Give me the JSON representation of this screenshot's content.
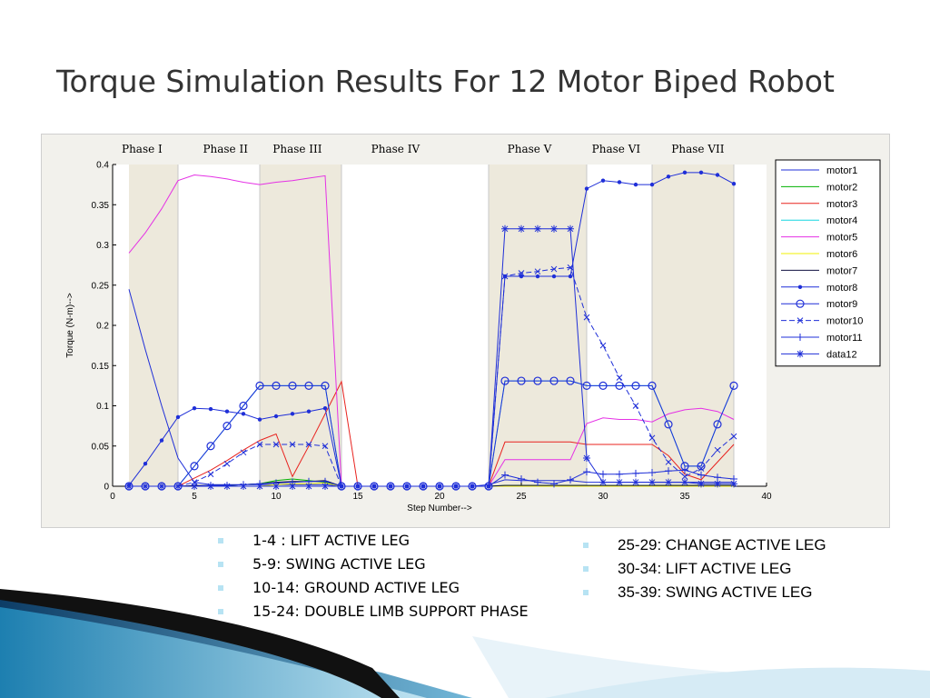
{
  "slide": {
    "title": "Torque Simulation Results For 12 Motor Biped Robot"
  },
  "bullets_left": [
    "1-4 : LIFT ACTIVE LEG",
    "5-9: SWING ACTIVE LEG",
    "10-14: GROUND ACTIVE LEG",
    "15-24: DOUBLE LIMB SUPPORT PHASE"
  ],
  "bullets_right": [
    "25-29: CHANGE ACTIVE LEG",
    "30-34: LIFT ACTIVE LEG",
    "35-39: SWING ACTIVE LEG"
  ],
  "chart_data": {
    "type": "line",
    "title": "",
    "xlabel": "Step Number-->",
    "ylabel": "Torque (N-m)-->",
    "xlim": [
      0,
      40
    ],
    "ylim": [
      0,
      0.4
    ],
    "xticks": [
      0,
      5,
      10,
      15,
      20,
      25,
      30,
      35,
      40
    ],
    "yticks": [
      0,
      0.05,
      0.1,
      0.15,
      0.2,
      0.25,
      0.3,
      0.35,
      0.4
    ],
    "legend_position": "top-right",
    "phase_labels": [
      "Phase I",
      "Phase II",
      "Phase III",
      "Phase IV",
      "Phase V",
      "Phase VI",
      "Phase VII"
    ],
    "phase_boundaries": [
      4,
      9,
      14,
      23,
      29,
      33,
      38
    ],
    "phase_shaded": [
      [
        1,
        4
      ],
      [
        9,
        14
      ],
      [
        23,
        29
      ],
      [
        33,
        38
      ]
    ],
    "colors": {
      "motor1": "#1f2fd8",
      "motor2": "#00b000",
      "motor3": "#e8231f",
      "motor4": "#15d6e0",
      "motor5": "#e531e5",
      "motor6": "#f0f000",
      "motor7": "#101040",
      "motor8": "#1f2fd8",
      "motor9": "#1f2fd8",
      "motor10": "#1f2fd8",
      "motor11": "#1f2fd8",
      "data12": "#1f2fd8"
    },
    "x": [
      1,
      2,
      3,
      4,
      5,
      6,
      7,
      8,
      9,
      10,
      11,
      12,
      13,
      14,
      15,
      16,
      17,
      18,
      19,
      20,
      21,
      22,
      23,
      24,
      25,
      26,
      27,
      28,
      29,
      30,
      31,
      32,
      33,
      34,
      35,
      36,
      37,
      38
    ],
    "series": [
      {
        "name": "motor1",
        "marker": "none",
        "values": [
          0.245,
          0.17,
          0.1,
          0.035,
          0.005,
          0.002,
          0.002,
          0.002,
          0.002,
          0.002,
          0.002,
          0.002,
          0.002,
          0,
          0,
          0,
          0,
          0,
          0,
          0,
          0,
          0,
          0.002,
          0.008,
          0.007,
          0.007,
          0.007,
          0.007,
          0.005,
          0.005,
          0.005,
          0.005,
          0.005,
          0.005,
          0.005,
          0.005,
          0.005,
          0.005
        ]
      },
      {
        "name": "motor2",
        "marker": "none",
        "values": [
          0,
          0,
          0,
          0,
          0,
          0.001,
          0.001,
          0.002,
          0.003,
          0.007,
          0.009,
          0.007,
          0.005,
          0,
          0,
          0,
          0,
          0,
          0,
          0,
          0,
          0,
          0,
          0.001,
          0.001,
          0.001,
          0.001,
          0.001,
          0.001,
          0.001,
          0.001,
          0.001,
          0.001,
          0.001,
          0.001,
          0.001,
          0.001,
          0.001
        ]
      },
      {
        "name": "motor3",
        "marker": "none",
        "values": [
          0,
          0,
          0,
          0,
          0.01,
          0.02,
          0.032,
          0.045,
          0.057,
          0.065,
          0.012,
          0.05,
          0.09,
          0.13,
          0,
          0,
          0,
          0,
          0,
          0,
          0,
          0,
          0,
          0.055,
          0.055,
          0.055,
          0.055,
          0.055,
          0.052,
          0.052,
          0.052,
          0.052,
          0.052,
          0.038,
          0.015,
          0.008,
          0.03,
          0.052
        ]
      },
      {
        "name": "motor4",
        "marker": "none",
        "values": [
          0,
          0,
          0,
          0,
          0.025,
          0.05,
          0.075,
          0.1,
          0.125,
          0.125,
          0.125,
          0.125,
          0.125,
          0,
          0,
          0,
          0,
          0,
          0,
          0,
          0,
          0,
          0,
          0.131,
          0.131,
          0.131,
          0.131,
          0.131,
          0.125,
          0.125,
          0.125,
          0.125,
          0.125,
          0.077,
          0.025,
          0.025,
          0.077,
          0.125
        ]
      },
      {
        "name": "motor5",
        "marker": "none",
        "values": [
          0.29,
          0.315,
          0.345,
          0.38,
          0.387,
          0.385,
          0.382,
          0.378,
          0.375,
          0.378,
          0.38,
          0.383,
          0.386,
          0,
          0,
          0,
          0,
          0,
          0,
          0,
          0,
          0,
          0,
          0.033,
          0.033,
          0.033,
          0.033,
          0.033,
          0.078,
          0.085,
          0.083,
          0.083,
          0.08,
          0.09,
          0.095,
          0.097,
          0.093,
          0.083
        ]
      },
      {
        "name": "motor6",
        "marker": "none",
        "values": [
          0,
          0,
          0,
          0,
          0,
          0,
          0,
          0,
          0,
          0.002,
          0.003,
          0.003,
          0.004,
          0,
          0,
          0,
          0,
          0,
          0,
          0,
          0,
          0,
          0,
          0,
          0,
          0,
          0,
          0,
          0,
          0,
          0,
          0,
          0,
          0,
          0,
          0,
          0,
          0
        ]
      },
      {
        "name": "motor7",
        "marker": "none",
        "values": [
          0,
          0,
          0,
          0,
          0.001,
          0.001,
          0.001,
          0.002,
          0.003,
          0.005,
          0.006,
          0.006,
          0.007,
          0,
          0,
          0,
          0,
          0,
          0,
          0,
          0,
          0,
          0,
          0.001,
          0.001,
          0.001,
          0.001,
          0.001,
          0.001,
          0.001,
          0.001,
          0.001,
          0.001,
          0.001,
          0.001,
          0.001,
          0.001,
          0.001
        ]
      },
      {
        "name": "motor8",
        "marker": "dot",
        "values": [
          0.001,
          0.028,
          0.057,
          0.086,
          0.097,
          0.096,
          0.093,
          0.09,
          0.083,
          0.087,
          0.09,
          0.093,
          0.097,
          0,
          0,
          0,
          0,
          0,
          0,
          0,
          0,
          0,
          0,
          0.261,
          0.261,
          0.261,
          0.261,
          0.261,
          0.37,
          0.38,
          0.378,
          0.375,
          0.375,
          0.385,
          0.39,
          0.39,
          0.387,
          0.376
        ]
      },
      {
        "name": "motor9",
        "marker": "circle",
        "values": [
          0,
          0,
          0,
          0,
          0.025,
          0.05,
          0.075,
          0.1,
          0.125,
          0.125,
          0.125,
          0.125,
          0.125,
          0,
          0,
          0,
          0,
          0,
          0,
          0,
          0,
          0,
          0,
          0.131,
          0.131,
          0.131,
          0.131,
          0.131,
          0.125,
          0.125,
          0.125,
          0.125,
          0.125,
          0.077,
          0.025,
          0.025,
          0.077,
          0.125
        ]
      },
      {
        "name": "motor10",
        "marker": "x",
        "values": [
          0,
          0,
          0,
          0,
          0.005,
          0.015,
          0.028,
          0.042,
          0.052,
          0.052,
          0.052,
          0.052,
          0.05,
          0,
          0,
          0,
          0,
          0,
          0,
          0,
          0,
          0,
          0,
          0.261,
          0.265,
          0.267,
          0.27,
          0.272,
          0.21,
          0.175,
          0.135,
          0.1,
          0.06,
          0.03,
          0.012,
          0.022,
          0.045,
          0.062
        ]
      },
      {
        "name": "motor11",
        "marker": "plus",
        "values": [
          0,
          0,
          0,
          0,
          0,
          0.001,
          0.001,
          0.002,
          0.003,
          0.004,
          0.005,
          0.006,
          0.006,
          0,
          0,
          0,
          0,
          0,
          0,
          0,
          0,
          0,
          0,
          0.014,
          0.009,
          0.005,
          0.003,
          0.008,
          0.018,
          0.015,
          0.015,
          0.016,
          0.017,
          0.019,
          0.02,
          0.014,
          0.011,
          0.009
        ]
      },
      {
        "name": "data12",
        "marker": "star",
        "values": [
          0,
          0,
          0,
          0,
          0,
          0,
          0,
          0,
          0,
          0,
          0,
          0,
          0,
          0,
          0,
          0,
          0,
          0,
          0,
          0,
          0,
          0,
          0,
          0.32,
          0.32,
          0.32,
          0.32,
          0.32,
          0.035,
          0.005,
          0.005,
          0.005,
          0.005,
          0.005,
          0.005,
          0.003,
          0.003,
          0.003
        ]
      }
    ]
  }
}
